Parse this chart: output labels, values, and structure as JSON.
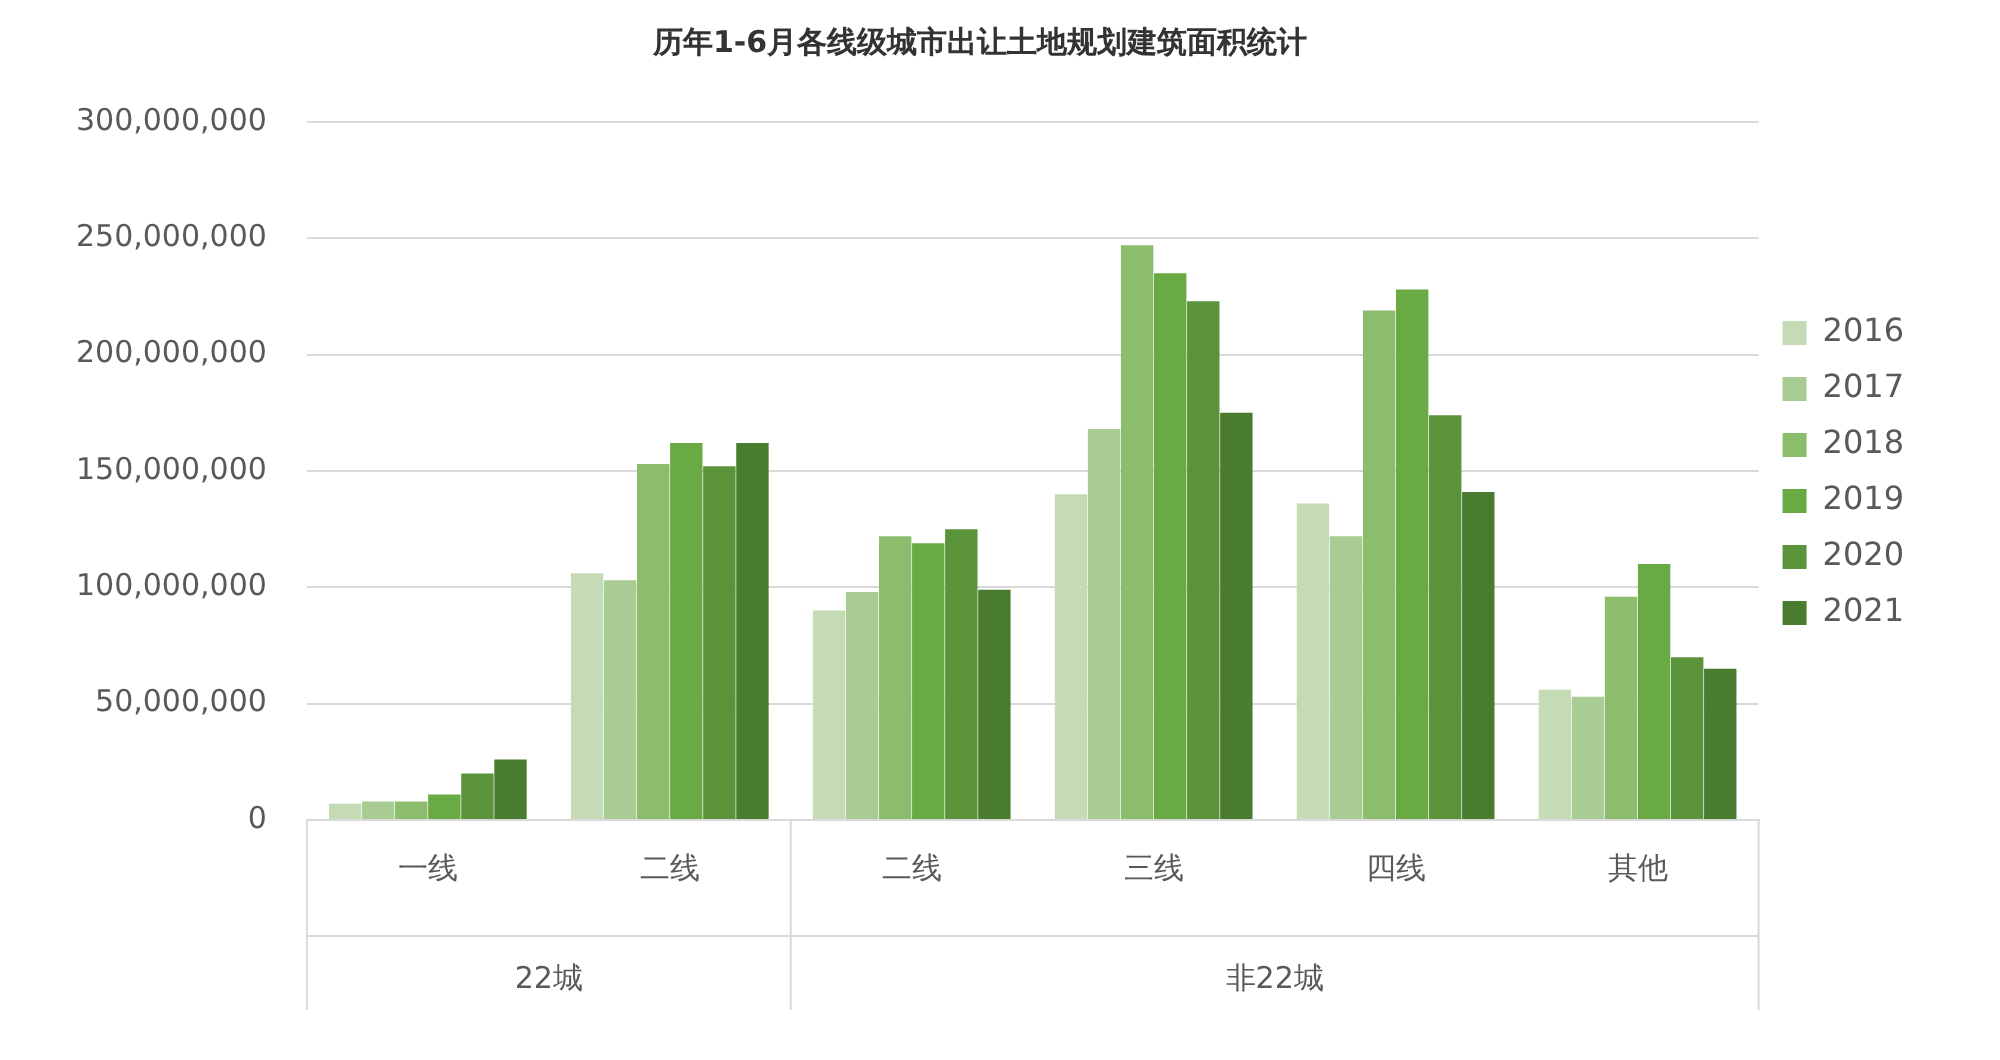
{
  "chart_data": {
    "type": "bar",
    "title": "历年1-6月各线级城市出让土地规划建筑面积统计",
    "categories": [
      "一线",
      "二线",
      "二线",
      "三线",
      "四线",
      "其他"
    ],
    "series": [
      {
        "name": "2016",
        "color": "#c5dbb6",
        "values": [
          7000000,
          106000000,
          90000000,
          140000000,
          136000000,
          56000000
        ]
      },
      {
        "name": "2017",
        "color": "#a9cc94",
        "values": [
          8000000,
          103000000,
          98000000,
          168000000,
          122000000,
          53000000
        ]
      },
      {
        "name": "2018",
        "color": "#8cbd6c",
        "values": [
          8000000,
          153000000,
          122000000,
          247000000,
          219000000,
          96000000
        ]
      },
      {
        "name": "2019",
        "color": "#6aaa45",
        "values": [
          11000000,
          162000000,
          119000000,
          235000000,
          228000000,
          110000000
        ]
      },
      {
        "name": "2020",
        "color": "#5b933b",
        "values": [
          20000000,
          152000000,
          125000000,
          223000000,
          174000000,
          70000000
        ]
      },
      {
        "name": "2021",
        "color": "#4a7c30",
        "values": [
          26000000,
          162000000,
          99000000,
          175000000,
          141000000,
          65000000
        ]
      }
    ],
    "ylim": [
      0,
      300000000
    ],
    "yticks": [
      {
        "value": 0,
        "label": "0"
      },
      {
        "value": 50000000,
        "label": "50,000,000"
      },
      {
        "value": 100000000,
        "label": "100,000,000"
      },
      {
        "value": 150000000,
        "label": "150,000,000"
      },
      {
        "value": 200000000,
        "label": "200,000,000"
      },
      {
        "value": 250000000,
        "label": "250,000,000"
      },
      {
        "value": 300000000,
        "label": "300,000,000"
      }
    ],
    "grid": "y",
    "legend": "right",
    "annotations": [
      "22城",
      "非22城"
    ]
  }
}
